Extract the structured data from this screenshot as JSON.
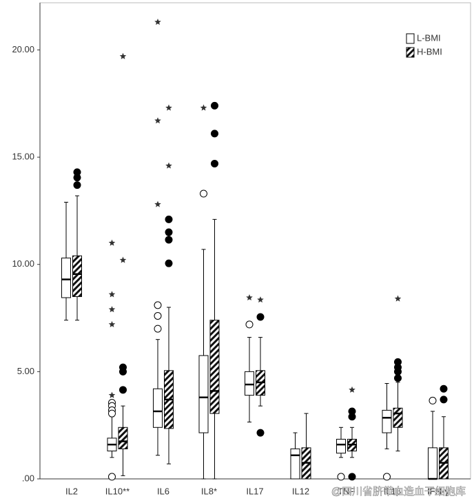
{
  "chart_data": {
    "type": "box",
    "categories": [
      "IL2",
      "IL10**",
      "IL6",
      "IL8*",
      "IL17",
      "IL12",
      "TNF",
      "IL1β",
      "IFN-γ"
    ],
    "ylim": [
      0,
      22.2
    ],
    "yticks": [
      {
        "value": 0,
        "label": ".00"
      },
      {
        "value": 5,
        "label": "5.00"
      },
      {
        "value": 10,
        "label": "10.00"
      },
      {
        "value": 15,
        "label": "15.00"
      },
      {
        "value": 20,
        "label": "20.00"
      }
    ],
    "legend": "top-right",
    "watermark": "@四川省脐带血造血干细胞库",
    "series": [
      {
        "name": "L-BMI",
        "color": "#000000",
        "fill": "plain",
        "boxes": [
          {
            "min": 7.4,
            "q1": 8.45,
            "median": 9.3,
            "q3": 10.3,
            "max": 12.9,
            "outliers": [],
            "extremes": []
          },
          {
            "min": 1.0,
            "q1": 1.3,
            "median": 1.6,
            "q3": 1.9,
            "max": 2.9,
            "outliers": [
              3.55,
              3.4,
              3.2,
              3.05,
              0.1
            ],
            "extremes": [
              11.0,
              8.6,
              7.9,
              7.2,
              3.9
            ]
          },
          {
            "min": 1.1,
            "q1": 2.4,
            "median": 3.15,
            "q3": 4.2,
            "max": 6.5,
            "outliers": [
              8.1,
              7.6,
              7.0
            ],
            "extremes": [
              21.3,
              16.7,
              12.8
            ]
          },
          {
            "min": 0,
            "q1": 2.15,
            "median": 3.8,
            "q3": 5.75,
            "max": 10.7,
            "outliers": [
              13.3
            ],
            "extremes": [
              17.3
            ]
          },
          {
            "min": 2.65,
            "q1": 3.9,
            "median": 4.4,
            "q3": 5.0,
            "max": 6.6,
            "outliers": [
              7.2
            ],
            "extremes": [
              8.45
            ]
          },
          {
            "min": 0,
            "q1": 0,
            "median": 1.1,
            "q3": 1.4,
            "max": 2.15,
            "outliers": [],
            "extremes": []
          },
          {
            "min": 1.0,
            "q1": 1.2,
            "median": 1.6,
            "q3": 1.85,
            "max": 2.4,
            "outliers": [
              0.1
            ],
            "extremes": []
          },
          {
            "min": 1.4,
            "q1": 2.15,
            "median": 2.85,
            "q3": 3.2,
            "max": 4.45,
            "outliers": [
              0.1
            ],
            "extremes": []
          },
          {
            "min": 0,
            "q1": 0,
            "median": 0,
            "q3": 1.45,
            "max": 3.15,
            "outliers": [
              3.65
            ],
            "extremes": []
          }
        ]
      },
      {
        "name": "H-BMI",
        "color": "#000000",
        "fill": "hatch",
        "boxes": [
          {
            "min": 7.4,
            "q1": 8.5,
            "median": 9.55,
            "q3": 10.4,
            "max": 13.2,
            "outliers": [
              14.3,
              14.05,
              13.7
            ],
            "extremes": []
          },
          {
            "min": 0.15,
            "q1": 1.4,
            "median": 1.75,
            "q3": 2.4,
            "max": 3.4,
            "outliers": [
              5.2,
              5.0,
              4.15
            ],
            "extremes": [
              19.7,
              10.2
            ]
          },
          {
            "min": 0.7,
            "q1": 2.35,
            "median": 3.7,
            "q3": 5.05,
            "max": 8.0,
            "outliers": [
              12.1,
              11.5,
              11.15,
              10.05
            ],
            "extremes": [
              17.3,
              14.6
            ]
          },
          {
            "min": 0,
            "q1": 3.05,
            "median": 4.1,
            "q3": 7.4,
            "max": 12.1,
            "outliers": [
              17.4,
              16.1,
              14.7
            ],
            "extremes": []
          },
          {
            "min": 3.4,
            "q1": 3.9,
            "median": 4.5,
            "q3": 5.05,
            "max": 6.6,
            "outliers": [
              7.55,
              2.15
            ],
            "extremes": [
              8.35
            ]
          },
          {
            "min": 0,
            "q1": 0,
            "median": 0.75,
            "q3": 1.45,
            "max": 3.05,
            "outliers": [],
            "extremes": []
          },
          {
            "min": 1.0,
            "q1": 1.3,
            "median": 1.6,
            "q3": 1.85,
            "max": 2.4,
            "outliers": [
              3.15,
              2.9,
              0.1
            ],
            "extremes": [
              4.15
            ]
          },
          {
            "min": 1.3,
            "q1": 2.4,
            "median": 3.05,
            "q3": 3.3,
            "max": 4.5,
            "outliers": [
              5.45,
              5.2,
              5.0,
              4.7
            ],
            "extremes": [
              8.4
            ]
          },
          {
            "min": 0,
            "q1": 0,
            "median": 0.75,
            "q3": 1.45,
            "max": 2.9,
            "outliers": [
              4.2,
              3.7
            ],
            "extremes": []
          }
        ]
      }
    ]
  }
}
